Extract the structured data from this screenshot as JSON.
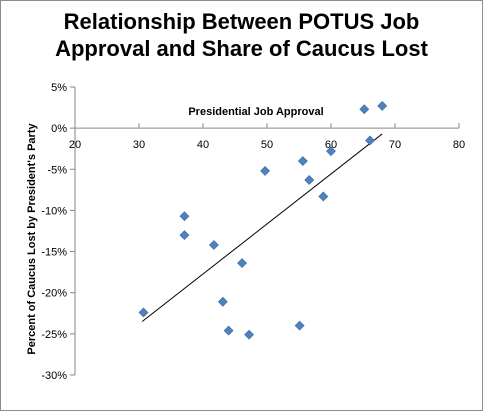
{
  "chart_data": {
    "type": "scatter",
    "title_lines": [
      "Relationship Between POTUS Job",
      "Approval and Share of Caucus Lost"
    ],
    "xlabel": "Presidential Job Approval",
    "ylabel": "Percent of Caucus  Lost by President's Party",
    "xlim": [
      20,
      80
    ],
    "ylim": [
      -30,
      5
    ],
    "x_ticks": [
      20,
      30,
      40,
      50,
      60,
      70,
      80
    ],
    "y_ticks": [
      5,
      0,
      -5,
      -10,
      -15,
      -20,
      -25,
      -30
    ],
    "y_tick_labels": [
      "5%",
      "0%",
      "-5%",
      "-10%",
      "-15%",
      "-20%",
      "-25%",
      "-30%"
    ],
    "grid": false,
    "legend": "none",
    "marker_color": "#4f81bd",
    "trendline": {
      "x": [
        30.5,
        68
      ],
      "y": [
        -23.5,
        -0.7
      ]
    },
    "points": [
      {
        "x": 30.7,
        "y": -22.4
      },
      {
        "x": 37.1,
        "y": -10.7
      },
      {
        "x": 37.1,
        "y": -13.0
      },
      {
        "x": 41.7,
        "y": -14.2
      },
      {
        "x": 43.1,
        "y": -21.1
      },
      {
        "x": 44.0,
        "y": -24.6
      },
      {
        "x": 46.1,
        "y": -16.4
      },
      {
        "x": 47.2,
        "y": -25.1
      },
      {
        "x": 49.7,
        "y": -5.2
      },
      {
        "x": 55.1,
        "y": -24.0
      },
      {
        "x": 55.6,
        "y": -4.0
      },
      {
        "x": 56.6,
        "y": -6.3
      },
      {
        "x": 58.8,
        "y": -8.3
      },
      {
        "x": 60.0,
        "y": -2.8
      },
      {
        "x": 65.2,
        "y": 2.3
      },
      {
        "x": 66.1,
        "y": -1.5
      },
      {
        "x": 68.0,
        "y": 2.7
      }
    ]
  }
}
